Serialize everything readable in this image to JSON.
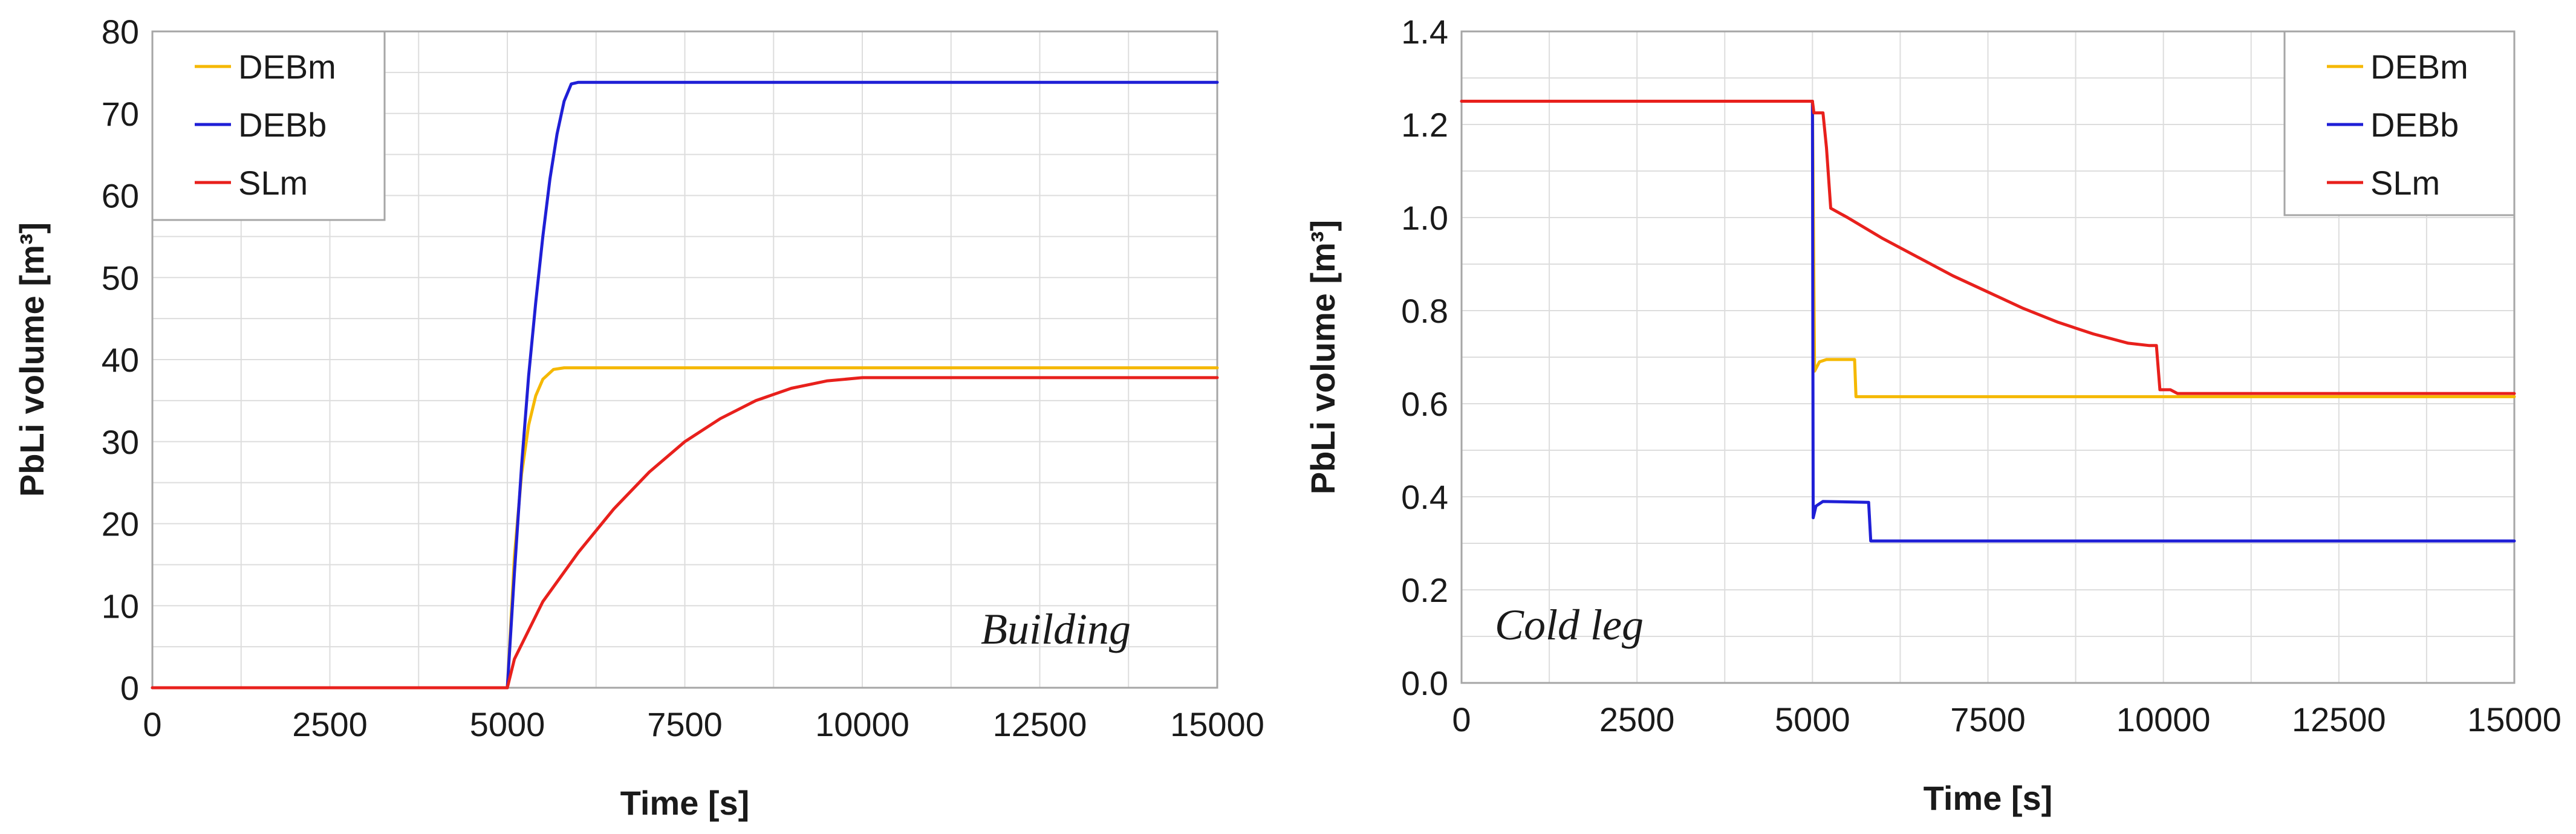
{
  "chart_data": [
    {
      "type": "line",
      "annotation": "Building",
      "xlabel": "Time [s]",
      "ylabel": "PbLi volume [m³]",
      "xlim": [
        0,
        15000
      ],
      "ylim": [
        0,
        80
      ],
      "xticks": [
        0,
        2500,
        5000,
        7500,
        10000,
        12500,
        15000
      ],
      "xtick_labels": [
        "0",
        "2500",
        "5000",
        "7500",
        "10000",
        "12500",
        "15000"
      ],
      "yticks": [
        0,
        10,
        20,
        30,
        40,
        50,
        60,
        70,
        80
      ],
      "ytick_labels": [
        "0",
        "10",
        "20",
        "30",
        "40",
        "50",
        "60",
        "70",
        "80"
      ],
      "grid": true,
      "legend_position": "top-left",
      "series": [
        {
          "name": "DEBm",
          "color": "#f5b800",
          "points": [
            [
              0,
              0
            ],
            [
              5000,
              0
            ],
            [
              5100,
              16
            ],
            [
              5200,
              26
            ],
            [
              5300,
              32
            ],
            [
              5400,
              35.6
            ],
            [
              5500,
              37.6
            ],
            [
              5650,
              38.8
            ],
            [
              5800,
              39
            ],
            [
              15000,
              39
            ]
          ]
        },
        {
          "name": "DEBb",
          "color": "#1f1fd6",
          "points": [
            [
              0,
              0
            ],
            [
              5000,
              0
            ],
            [
              5100,
              14
            ],
            [
              5200,
              27
            ],
            [
              5300,
              38
            ],
            [
              5400,
              47
            ],
            [
              5500,
              55
            ],
            [
              5600,
              62
            ],
            [
              5700,
              67.5
            ],
            [
              5800,
              71.5
            ],
            [
              5900,
              73.6
            ],
            [
              6000,
              73.8
            ],
            [
              15000,
              73.8
            ]
          ]
        },
        {
          "name": "SLm",
          "color": "#e8201c",
          "points": [
            [
              0,
              0
            ],
            [
              5000,
              0
            ],
            [
              5100,
              3.5
            ],
            [
              5500,
              10.5
            ],
            [
              6000,
              16.5
            ],
            [
              6500,
              21.8
            ],
            [
              7000,
              26.3
            ],
            [
              7500,
              30
            ],
            [
              8000,
              32.8
            ],
            [
              8500,
              35
            ],
            [
              9000,
              36.5
            ],
            [
              9500,
              37.4
            ],
            [
              10000,
              37.8
            ],
            [
              15000,
              37.8
            ]
          ]
        }
      ]
    },
    {
      "type": "line",
      "annotation": "Cold leg",
      "xlabel": "Time [s]",
      "ylabel": "PbLi volume [m³]",
      "xlim": [
        0,
        15000
      ],
      "ylim": [
        0,
        1.4
      ],
      "xticks": [
        0,
        2500,
        5000,
        7500,
        10000,
        12500,
        15000
      ],
      "xtick_labels": [
        "0",
        "2500",
        "5000",
        "7500",
        "10000",
        "12500",
        "15000"
      ],
      "yticks": [
        0,
        0.2,
        0.4,
        0.6,
        0.8,
        1.0,
        1.2,
        1.4
      ],
      "ytick_labels": [
        "0.0",
        "0.2",
        "0.4",
        "0.6",
        "0.8",
        "1.0",
        "1.2",
        "1.4"
      ],
      "grid": true,
      "legend_position": "top-right",
      "series": [
        {
          "name": "DEBm",
          "color": "#f5b800",
          "points": [
            [
              0,
              1.25
            ],
            [
              5000,
              1.25
            ],
            [
              5030,
              0.67
            ],
            [
              5100,
              0.69
            ],
            [
              5200,
              0.695
            ],
            [
              5600,
              0.695
            ],
            [
              5620,
              0.615
            ],
            [
              15000,
              0.615
            ]
          ]
        },
        {
          "name": "DEBb",
          "color": "#1f1fd6",
          "points": [
            [
              0,
              1.25
            ],
            [
              5000,
              1.25
            ],
            [
              5010,
              0.355
            ],
            [
              5050,
              0.38
            ],
            [
              5150,
              0.39
            ],
            [
              5800,
              0.388
            ],
            [
              5830,
              0.305
            ],
            [
              15000,
              0.305
            ]
          ]
        },
        {
          "name": "SLm",
          "color": "#e8201c",
          "points": [
            [
              0,
              1.25
            ],
            [
              5000,
              1.25
            ],
            [
              5020,
              1.225
            ],
            [
              5150,
              1.225
            ],
            [
              5200,
              1.15
            ],
            [
              5260,
              1.02
            ],
            [
              5500,
              1.0
            ],
            [
              6000,
              0.955
            ],
            [
              6500,
              0.915
            ],
            [
              7000,
              0.875
            ],
            [
              7500,
              0.84
            ],
            [
              8000,
              0.805
            ],
            [
              8500,
              0.775
            ],
            [
              9000,
              0.75
            ],
            [
              9500,
              0.73
            ],
            [
              9800,
              0.725
            ],
            [
              9900,
              0.725
            ],
            [
              9950,
              0.63
            ],
            [
              10100,
              0.63
            ],
            [
              10200,
              0.622
            ],
            [
              15000,
              0.622
            ]
          ]
        }
      ]
    }
  ]
}
